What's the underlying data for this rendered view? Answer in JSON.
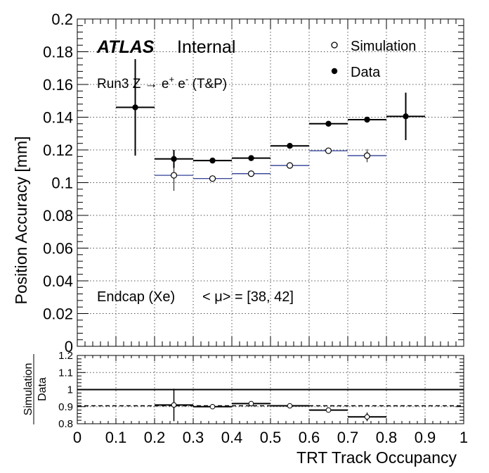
{
  "chart_data": [
    {
      "type": "scatter",
      "panel": "main",
      "ylabel": "Position Accuracy [mm]",
      "xlim": [
        0,
        1
      ],
      "ylim": [
        0,
        0.2
      ],
      "grid": true,
      "yticks": [
        "0",
        "0.02",
        "0.04",
        "0.06",
        "0.08",
        "0.1",
        "0.12",
        "0.14",
        "0.16",
        "0.18",
        "0.2"
      ],
      "ytick_values": [
        0,
        0.02,
        0.04,
        0.06,
        0.08,
        0.1,
        0.12,
        0.14,
        0.16,
        0.18,
        0.2
      ],
      "annotations": {
        "atlas": "ATLAS",
        "internal": "Internal",
        "run_main": "Run3 Z → e",
        "run_sup1": "+",
        "run_mid": " e",
        "run_sup2": "-",
        "run_tail": " (T&P)",
        "region": "Endcap (Xe)",
        "pileup": "< μ> = [38, 42]"
      },
      "legend": {
        "placement": "top-right",
        "entries": [
          {
            "label": "Simulation",
            "marker": "open-circle"
          },
          {
            "label": "Data",
            "marker": "filled-circle"
          }
        ]
      },
      "series": [
        {
          "name": "Simulation",
          "marker": "open-circle",
          "color": "#1a2a8a",
          "points": [
            {
              "xlo": 0.2,
              "xhi": 0.3,
              "x": 0.25,
              "y": 0.1045,
              "err": 0.0095
            },
            {
              "xlo": 0.3,
              "xhi": 0.4,
              "x": 0.35,
              "y": 0.1025,
              "err": 0.0012
            },
            {
              "xlo": 0.4,
              "xhi": 0.5,
              "x": 0.45,
              "y": 0.1055,
              "err": 0.0008
            },
            {
              "xlo": 0.5,
              "xhi": 0.6,
              "x": 0.55,
              "y": 0.1105,
              "err": 0.0008
            },
            {
              "xlo": 0.6,
              "xhi": 0.7,
              "x": 0.65,
              "y": 0.1195,
              "err": 0.0012
            },
            {
              "xlo": 0.7,
              "xhi": 0.8,
              "x": 0.75,
              "y": 0.1165,
              "err": 0.004
            }
          ]
        },
        {
          "name": "Data",
          "marker": "filled-circle",
          "color": "#000000",
          "points": [
            {
              "xlo": 0.1,
              "xhi": 0.2,
              "x": 0.15,
              "y": 0.146,
              "err": 0.0295
            },
            {
              "xlo": 0.2,
              "xhi": 0.3,
              "x": 0.25,
              "y": 0.1145,
              "err": 0.0055
            },
            {
              "xlo": 0.3,
              "xhi": 0.4,
              "x": 0.35,
              "y": 0.1135,
              "err": 0.0015
            },
            {
              "xlo": 0.4,
              "xhi": 0.5,
              "x": 0.45,
              "y": 0.115,
              "err": 0.001
            },
            {
              "xlo": 0.5,
              "xhi": 0.6,
              "x": 0.55,
              "y": 0.1225,
              "err": 0.0009
            },
            {
              "xlo": 0.6,
              "xhi": 0.7,
              "x": 0.65,
              "y": 0.136,
              "err": 0.001
            },
            {
              "xlo": 0.7,
              "xhi": 0.8,
              "x": 0.75,
              "y": 0.1385,
              "err": 0.0012
            },
            {
              "xlo": 0.8,
              "xhi": 0.9,
              "x": 0.85,
              "y": 0.1405,
              "err": 0.0145
            }
          ]
        }
      ]
    },
    {
      "type": "scatter",
      "panel": "ratio",
      "ylabel_num": "Simulation",
      "ylabel_den": "Data",
      "xlabel": "TRT Track Occupancy",
      "xlim": [
        0,
        1
      ],
      "ylim": [
        0.8,
        1.2
      ],
      "grid": true,
      "reference_line": 1.0,
      "mean_line": 0.905,
      "yticks": [
        "0.8",
        "0.9",
        "1",
        "1.1",
        "1.2"
      ],
      "ytick_values": [
        0.8,
        0.9,
        1.0,
        1.1,
        1.2
      ],
      "xticks": [
        "0",
        "0.1",
        "0.2",
        "0.3",
        "0.4",
        "0.5",
        "0.6",
        "0.7",
        "0.8",
        "0.9",
        "1"
      ],
      "xtick_values": [
        0,
        0.1,
        0.2,
        0.3,
        0.4,
        0.5,
        0.6,
        0.7,
        0.8,
        0.9,
        1.0
      ],
      "points": [
        {
          "xlo": 0.2,
          "xhi": 0.3,
          "x": 0.25,
          "y": 0.91,
          "err": 0.095
        },
        {
          "xlo": 0.3,
          "xhi": 0.4,
          "x": 0.35,
          "y": 0.9,
          "err": 0.015
        },
        {
          "xlo": 0.4,
          "xhi": 0.5,
          "x": 0.45,
          "y": 0.918,
          "err": 0.008
        },
        {
          "xlo": 0.5,
          "xhi": 0.6,
          "x": 0.55,
          "y": 0.905,
          "err": 0.006
        },
        {
          "xlo": 0.6,
          "xhi": 0.7,
          "x": 0.65,
          "y": 0.88,
          "err": 0.009
        },
        {
          "xlo": 0.7,
          "xhi": 0.8,
          "x": 0.75,
          "y": 0.84,
          "err": 0.025
        }
      ]
    }
  ]
}
